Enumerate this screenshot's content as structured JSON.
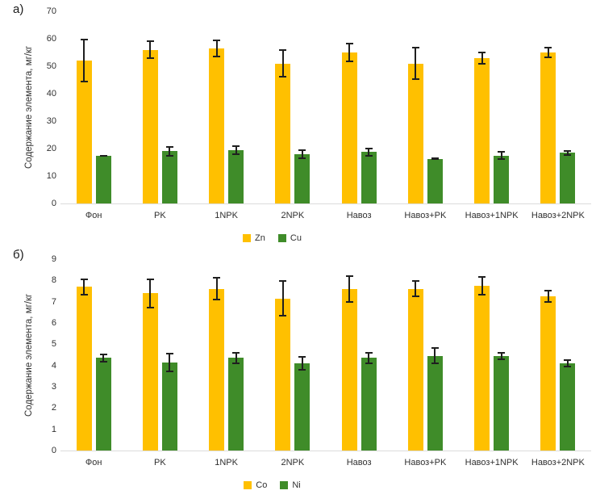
{
  "chart_data": [
    {
      "type": "bar",
      "panel_label": "а)",
      "ylabel": "Содержание элемента, мг/кг",
      "xlabel": "",
      "ylim": [
        0,
        70
      ],
      "yticks": [
        0,
        10,
        20,
        30,
        40,
        50,
        60,
        70
      ],
      "grid": false,
      "legend_position": "bottom",
      "categories": [
        "Фон",
        "PK",
        "1NPK",
        "2NPK",
        "Навоз",
        "Навоз+PK",
        "Навоз+1NPK",
        "Навоз+2NPK"
      ],
      "series": [
        {
          "name": "Zn",
          "color": "#FFC000",
          "values": [
            52,
            56,
            56.5,
            51,
            55,
            51,
            53,
            55
          ],
          "errors": [
            8,
            3.3,
            3.3,
            5.2,
            3.6,
            6,
            2.3,
            2.2
          ]
        },
        {
          "name": "Cu",
          "color": "#3F8C29",
          "values": [
            17.3,
            19,
            19.5,
            18,
            18.8,
            16.3,
            17.5,
            18.4
          ],
          "errors": [
            0.3,
            2,
            1.8,
            1.7,
            1.6,
            0.2,
            1.5,
            0.9
          ]
        }
      ]
    },
    {
      "type": "bar",
      "panel_label": "б)",
      "ylabel": "Содержание элемента, мг/кг",
      "xlabel": "",
      "ylim": [
        0,
        9
      ],
      "yticks": [
        0,
        1,
        2,
        3,
        4,
        5,
        6,
        7,
        8,
        9
      ],
      "grid": false,
      "legend_position": "bottom",
      "categories": [
        "Фон",
        "PK",
        "1NPK",
        "2NPK",
        "Навоз",
        "Навоз+PK",
        "Навоз+1NPK",
        "Навоз+2NPK"
      ],
      "series": [
        {
          "name": "Co",
          "color": "#FFC000",
          "values": [
            7.7,
            7.4,
            7.6,
            7.15,
            7.6,
            7.6,
            7.75,
            7.25
          ],
          "errors": [
            0.4,
            0.7,
            0.55,
            0.85,
            0.65,
            0.4,
            0.45,
            0.3
          ]
        },
        {
          "name": "Ni",
          "color": "#3F8C29",
          "values": [
            4.35,
            4.15,
            4.35,
            4.1,
            4.35,
            4.45,
            4.45,
            4.1
          ],
          "errors": [
            0.2,
            0.45,
            0.3,
            0.35,
            0.3,
            0.4,
            0.2,
            0.2
          ]
        }
      ]
    }
  ]
}
